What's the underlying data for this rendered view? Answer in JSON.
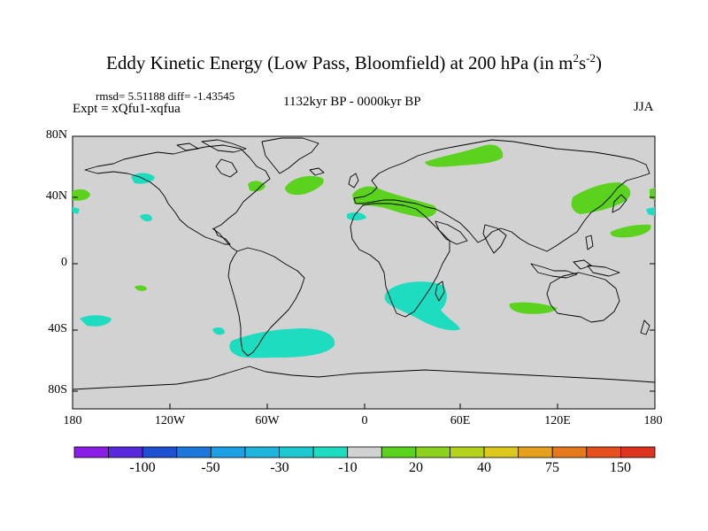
{
  "title_main": "Eddy Kinetic Energy (Low Pass, Bloomfield) at 200 hPa (in m",
  "title_sup1": "2",
  "title_s": "s",
  "title_sup2": "-2",
  "title_close": ")",
  "stats": "rmsd= 5.51188 diff= -1.43545",
  "expt": "Expt = xQfu1-xqfua",
  "period": "1132kyr BP - 0000kyr BP",
  "season": "JJA",
  "lat_labels": [
    "80N",
    "40N",
    "0",
    "40S",
    "80S"
  ],
  "lon_labels": [
    "180",
    "120W",
    "60W",
    "0",
    "60E",
    "120E",
    "180"
  ],
  "colorbar": {
    "labels": [
      "-100",
      "-50",
      "-30",
      "-10",
      "20",
      "40",
      "75",
      "150"
    ],
    "colors": [
      "#8a1ee6",
      "#5a28dc",
      "#1e50d2",
      "#1e78dc",
      "#1ea0e6",
      "#1eb4dc",
      "#1ec8d2",
      "#1edcc0",
      "#d2d2d2",
      "#5ad21e",
      "#8cd21e",
      "#b4d21e",
      "#dcc81e",
      "#e6a01e",
      "#e6781e",
      "#e6501e",
      "#dc321e"
    ]
  },
  "map": {
    "background": "#d2d2d2",
    "positive_color": "#5ad21e",
    "negative_color": "#1edcc0"
  }
}
